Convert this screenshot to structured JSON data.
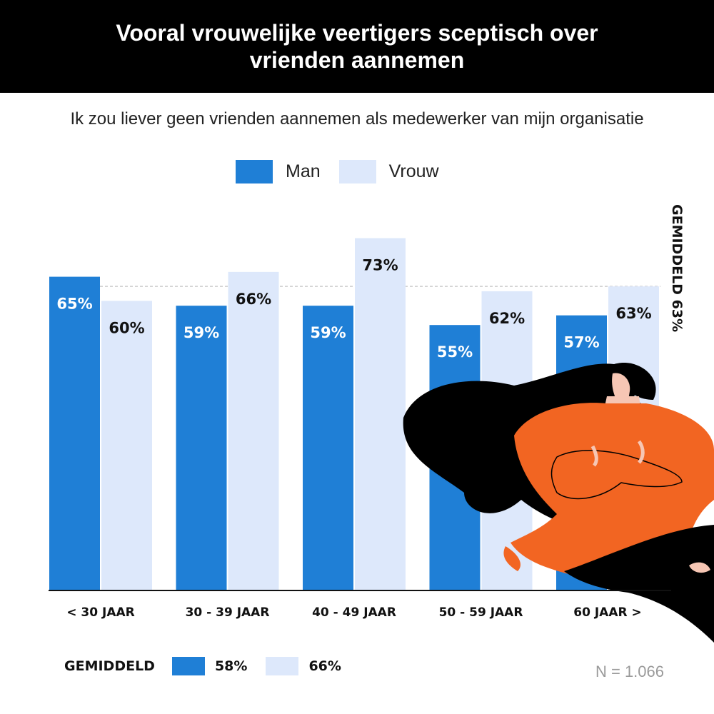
{
  "header": {
    "title": "Vooral vrouwelijke veertigers sceptisch over vrienden aannemen"
  },
  "subtitle": "Ik zou liever geen vrienden aannemen als medewerker van mijn organisatie",
  "legend": {
    "man": "Man",
    "vrouw": "Vrouw"
  },
  "colors": {
    "man": "#1f7fd6",
    "vrouw": "#dde8fb",
    "header_bg": "#000000",
    "illustration_orange": "#f26522"
  },
  "chart_data": {
    "type": "bar",
    "categories": [
      "< 30 JAAR",
      "30 - 39 JAAR",
      "40 - 49 JAAR",
      "50 - 59 JAAR",
      "60 JAAR >"
    ],
    "series": [
      {
        "name": "Man",
        "values": [
          65,
          59,
          59,
          55,
          57
        ],
        "labels": [
          "65%",
          "59%",
          "59%",
          "55%",
          "57%"
        ]
      },
      {
        "name": "Vrouw",
        "values": [
          60,
          66,
          73,
          62,
          63
        ],
        "labels": [
          "60%",
          "66%",
          "73%",
          "62%",
          "63%"
        ]
      }
    ],
    "ylim": [
      0,
      73
    ],
    "average_line": {
      "value": 63,
      "label": "GEMIDDELD 63%"
    },
    "grid": false
  },
  "footer": {
    "label": "GEMIDDELD",
    "man_avg": "58%",
    "vrouw_avg": "66%",
    "sample": "N = 1.066"
  },
  "illustration": {
    "icon": "woman-with-crossed-arms-illustration"
  }
}
